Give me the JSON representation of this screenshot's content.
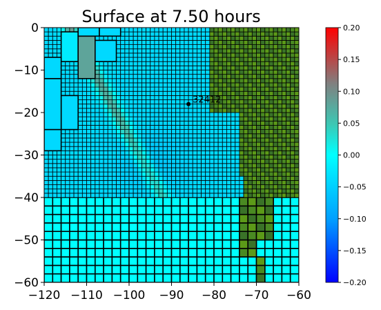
{
  "chart_data": {
    "type": "heatmap",
    "title": "Surface at 7.50 hours",
    "xlabel": "",
    "ylabel": "",
    "xlim": [
      -120,
      -60
    ],
    "ylim": [
      -60,
      0
    ],
    "x_ticks": [
      -120,
      -110,
      -100,
      -90,
      -80,
      -70,
      -60
    ],
    "x_tick_labels": [
      "−120",
      "−110",
      "−100",
      "−90",
      "−80",
      "−70",
      "−60"
    ],
    "y_ticks": [
      0,
      -10,
      -20,
      -30,
      -40,
      -50,
      -60
    ],
    "y_tick_labels": [
      "0",
      "−10",
      "−20",
      "−30",
      "−40",
      "−50",
      "−60"
    ],
    "colorbar": {
      "vmin": -0.2,
      "vmax": 0.2,
      "colors": [
        "#0000ff",
        "#00a0ff",
        "#00ffff",
        "#3cc8b4",
        "#808080",
        "#ff0000"
      ],
      "ticks": [
        -0.2,
        -0.15,
        -0.1,
        -0.05,
        0.0,
        0.05,
        0.1,
        0.15,
        0.2
      ],
      "tick_labels": [
        "−0.20",
        "−0.15",
        "−0.10",
        "−0.05",
        "0.00",
        "0.05",
        "0.10",
        "0.15",
        "0.20"
      ]
    },
    "land_colors": [
      "#3a7228",
      "#4a8a22",
      "#5c9a18"
    ],
    "grid_line_color": "#000000",
    "annotation": {
      "text": "32412",
      "x": -86,
      "y": -18
    },
    "wave_band": {
      "description_values": "crest of positive sea surface anomaly near the western boundary",
      "crest_value": 0.15,
      "trough_value": -0.05
    },
    "background_value": -0.04,
    "deep_water_value": 0.0
  }
}
